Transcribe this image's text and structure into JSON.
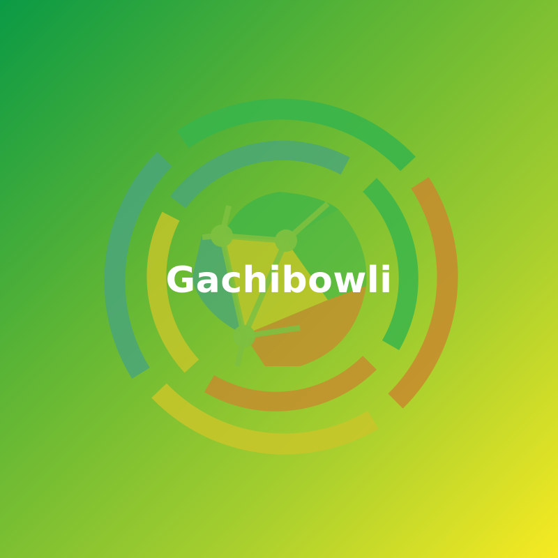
{
  "logo": {
    "title": "Gachibowli",
    "icon": "globe-network-ring-icon",
    "colors": {
      "background_start": "#0a9a45",
      "background_end": "#f6ea22",
      "ring_green": "#3ab54a",
      "ring_teal": "#4aa67a",
      "ring_orange": "#c8892e",
      "ring_yellow": "#c9c629",
      "title": "#ffffff"
    }
  }
}
